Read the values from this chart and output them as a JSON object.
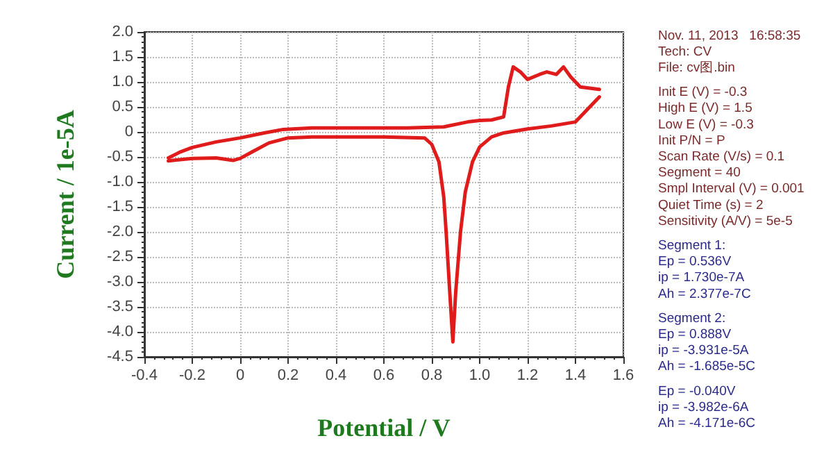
{
  "chart_data": {
    "type": "line",
    "xlabel": "Potential / V",
    "ylabel": "Current / 1e-5A",
    "xlim": [
      -0.4,
      1.6
    ],
    "xticks": [
      -0.4,
      -0.2,
      0,
      0.2,
      0.4,
      0.6,
      0.8,
      {
        "value": 1,
        "label": "1.0"
      },
      1.2,
      1.4,
      1.6
    ],
    "ylim": [
      -4.5,
      2
    ],
    "yticks": [
      {
        "value": 2,
        "label": "2.0"
      },
      1.5,
      {
        "value": 1,
        "label": "1.0"
      },
      0.5,
      0,
      -0.5,
      {
        "value": -1,
        "label": "-1.0"
      },
      -1.5,
      {
        "value": -2,
        "label": "-2.0"
      },
      -2.5,
      {
        "value": -3,
        "label": "-3.0"
      },
      -3.5,
      {
        "value": -4,
        "label": "-4.0"
      },
      -4.5
    ],
    "grid": true,
    "marker": "none",
    "line_style": "solid",
    "series": [
      {
        "color": "#e01b1b",
        "x": [
          -0.3,
          -0.25,
          -0.2,
          -0.1,
          0,
          0.1,
          0.18,
          0.3,
          0.5,
          0.7,
          0.85,
          0.95,
          1.0,
          1.05,
          1.1,
          1.12,
          1.14,
          1.17,
          1.2,
          1.25,
          1.28,
          1.32,
          1.35,
          1.38,
          1.42,
          1.5
        ],
        "values": [
          -0.52,
          -0.4,
          -0.31,
          -0.2,
          -0.12,
          -0.02,
          0.05,
          0.08,
          0.08,
          0.08,
          0.1,
          0.2,
          0.23,
          0.24,
          0.3,
          0.9,
          1.3,
          1.2,
          1.05,
          1.15,
          1.2,
          1.15,
          1.3,
          1.1,
          0.9,
          0.85
        ]
      },
      {
        "color": "#e01b1b",
        "x": [
          -0.3,
          -0.2,
          -0.1,
          -0.03,
          0,
          0.05,
          0.12,
          0.2,
          0.3,
          0.6,
          0.77,
          0.8,
          0.83,
          0.85,
          0.86,
          0.875,
          0.888,
          0.9,
          0.92,
          0.94,
          0.97,
          1.0,
          1.05,
          1.1,
          1.2,
          1.3,
          1.4,
          1.5
        ],
        "values": [
          -0.58,
          -0.53,
          -0.52,
          -0.57,
          -0.53,
          -0.4,
          -0.22,
          -0.12,
          -0.1,
          -0.1,
          -0.12,
          -0.25,
          -0.6,
          -1.3,
          -2.0,
          -3.2,
          -4.2,
          -3.2,
          -2.0,
          -1.2,
          -0.6,
          -0.3,
          -0.1,
          -0.02,
          0.06,
          0.12,
          0.2,
          0.7
        ]
      }
    ],
    "annotations": [
      "Nov. 11, 2013   16:58:35\nTech: CV\nFile: cv图.bin",
      "Init E (V) = -0.3\nHigh E (V) = 1.5\nLow E (V) = -0.3\nInit P/N = P\nScan Rate (V/s) = 0.1\nSegment = 40\nSmpl Interval (V) = 0.001\nQuiet Time (s) = 2\nSensitivity (A/V) = 5e-5",
      "Segment 1:\nEp = 0.536V\nip = 1.730e-7A\nAh = 2.377e-7C",
      "Segment 2:\nEp = 0.888V\nip = -3.931e-5A\nAh = -1.685e-5C",
      "Ep = -0.040V\nip = -3.982e-6A\nAh = -4.171e-6C"
    ]
  }
}
